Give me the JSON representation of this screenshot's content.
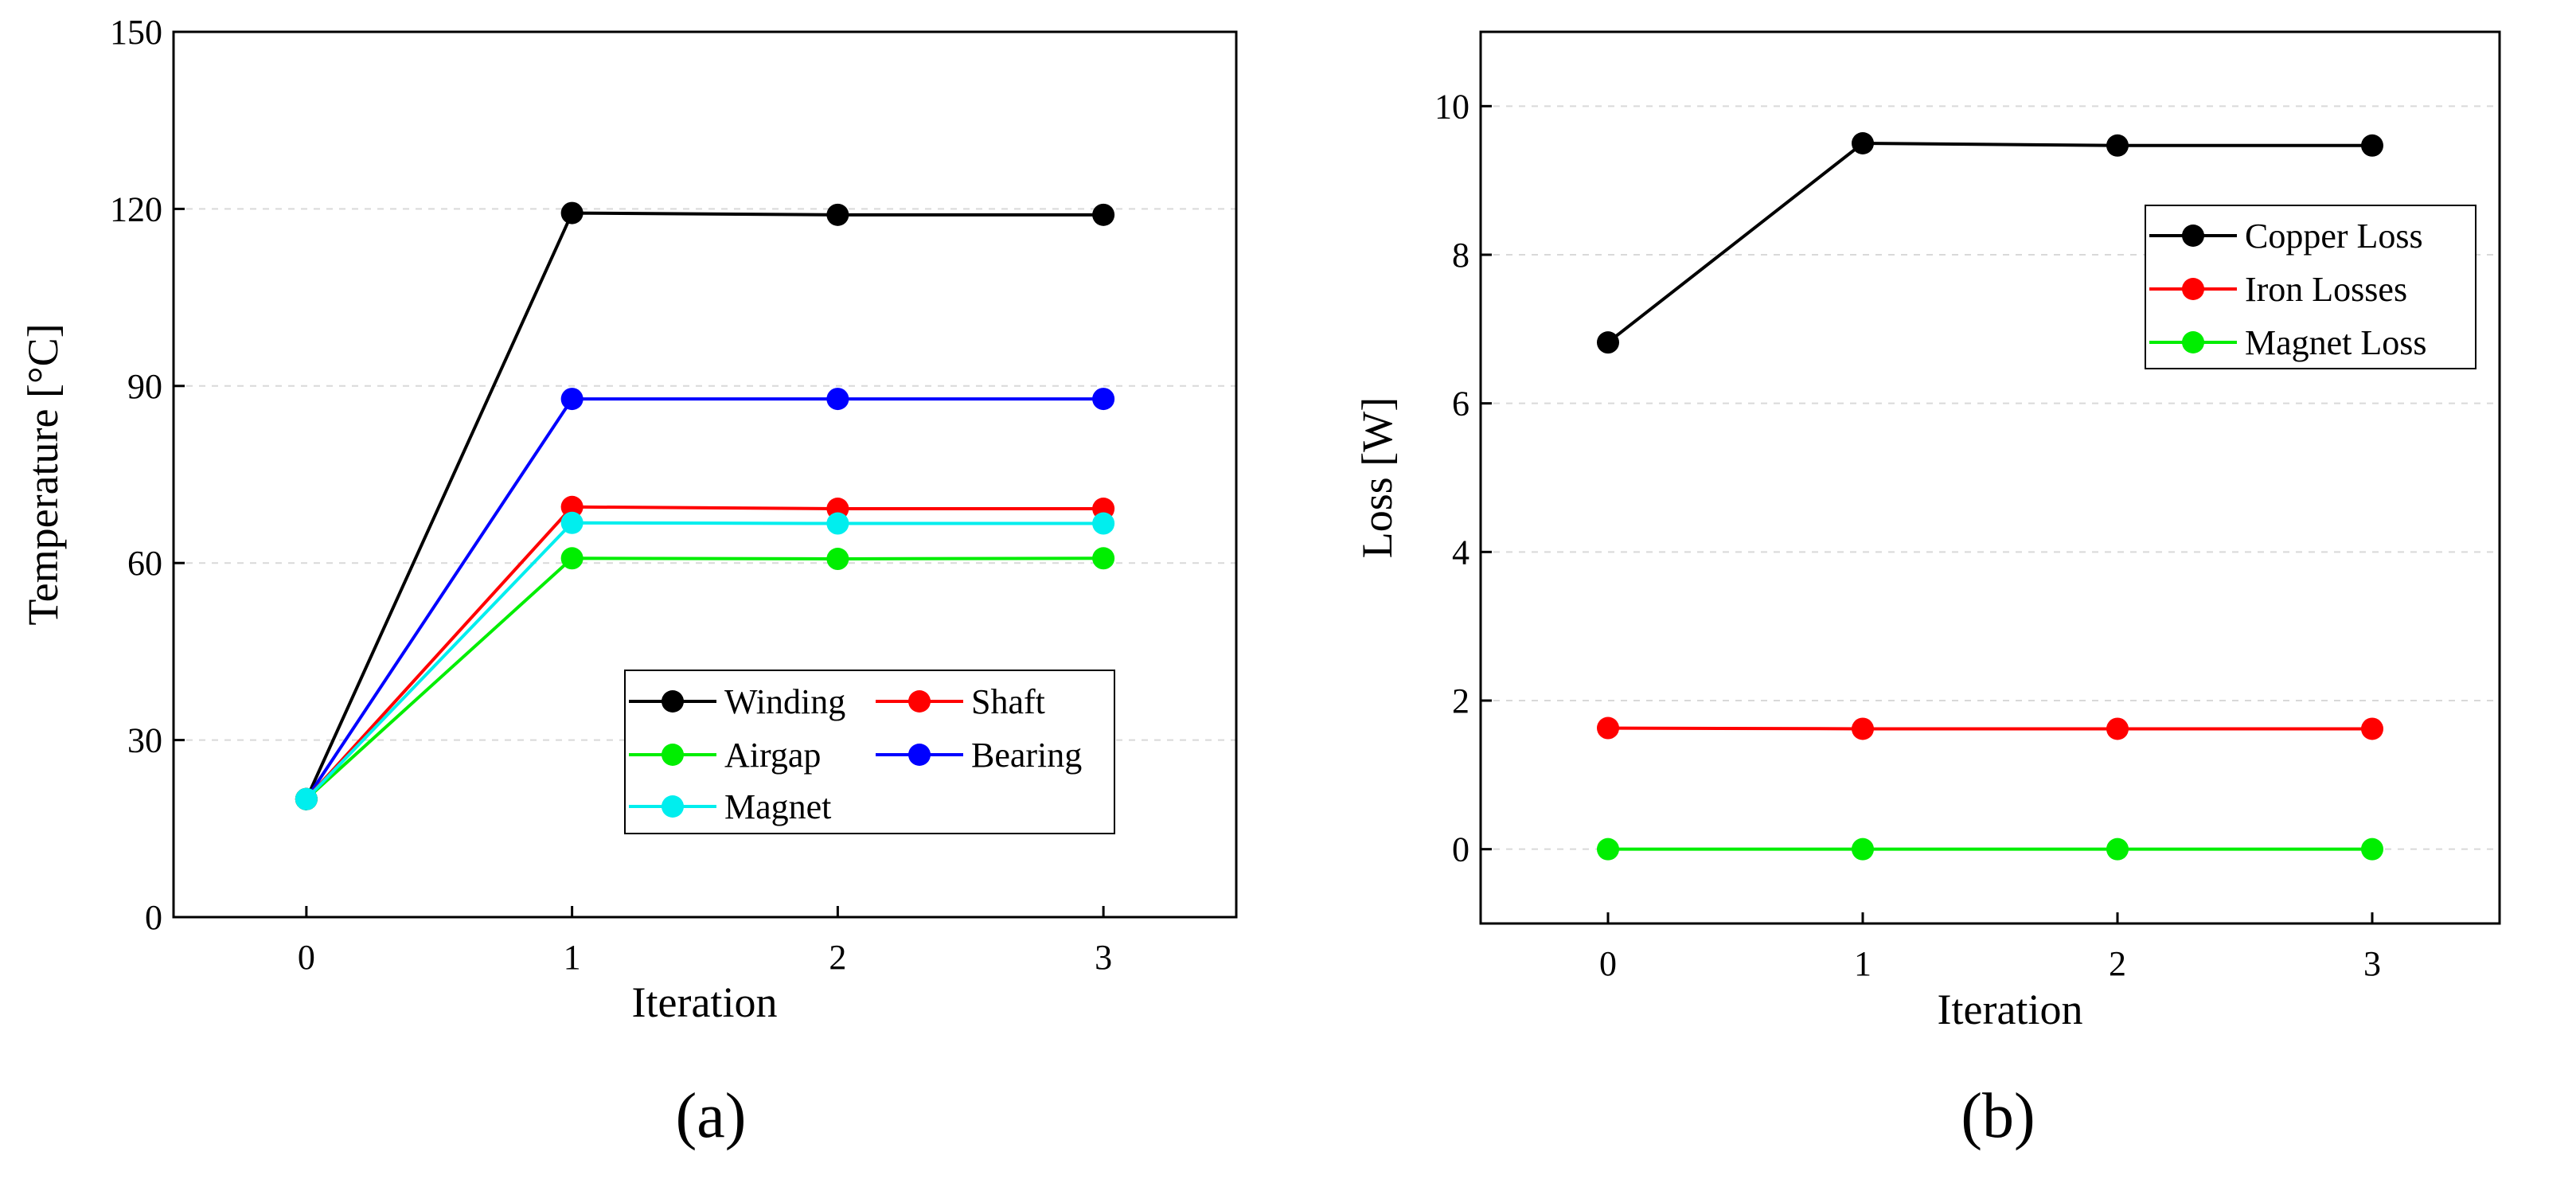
{
  "chart_data": [
    {
      "type": "line",
      "panel_label": "(a)",
      "xlabel": "Iteration",
      "ylabel": "Temperature [°C]",
      "x": [
        0,
        1,
        2,
        3
      ],
      "x_ticks": [
        "0",
        "1",
        "2",
        "3"
      ],
      "y_ticks": [
        "0",
        "30",
        "60",
        "90",
        "120",
        "150"
      ],
      "xlim": [
        -0.5,
        3.5
      ],
      "ylim": [
        0,
        150
      ],
      "grid": "horizontal dashed",
      "legend_position": "lower-right",
      "series": [
        {
          "name": "Winding",
          "color": "#000000",
          "values": [
            20,
            119.3,
            119.0,
            119.0
          ]
        },
        {
          "name": "Shaft",
          "color": "#ff0000",
          "values": [
            20,
            69.5,
            69.2,
            69.2
          ]
        },
        {
          "name": "Airgap",
          "color": "#00ee00",
          "values": [
            20,
            60.8,
            60.7,
            60.8
          ]
        },
        {
          "name": "Bearing",
          "color": "#0000ff",
          "values": [
            20,
            87.8,
            87.8,
            87.8
          ]
        },
        {
          "name": "Magnet",
          "color": "#00eeee",
          "values": [
            20,
            66.8,
            66.7,
            66.7
          ]
        }
      ]
    },
    {
      "type": "line",
      "panel_label": "(b)",
      "xlabel": "Iteration",
      "ylabel": "Loss [W]",
      "x": [
        0,
        1,
        2,
        3
      ],
      "x_ticks": [
        "0",
        "1",
        "2",
        "3"
      ],
      "y_ticks": [
        "0",
        "2",
        "4",
        "6",
        "8",
        "10"
      ],
      "xlim": [
        -0.5,
        3.5
      ],
      "ylim": [
        -1,
        11
      ],
      "grid": "horizontal dashed",
      "legend_position": "top-right",
      "series": [
        {
          "name": "Copper Loss",
          "color": "#000000",
          "values": [
            6.82,
            9.5,
            9.47,
            9.47
          ]
        },
        {
          "name": "Iron Losses",
          "color": "#ff0000",
          "values": [
            1.63,
            1.62,
            1.62,
            1.62
          ]
        },
        {
          "name": "Magnet Loss",
          "color": "#00ee00",
          "values": [
            0,
            0,
            0,
            0
          ]
        }
      ]
    }
  ]
}
